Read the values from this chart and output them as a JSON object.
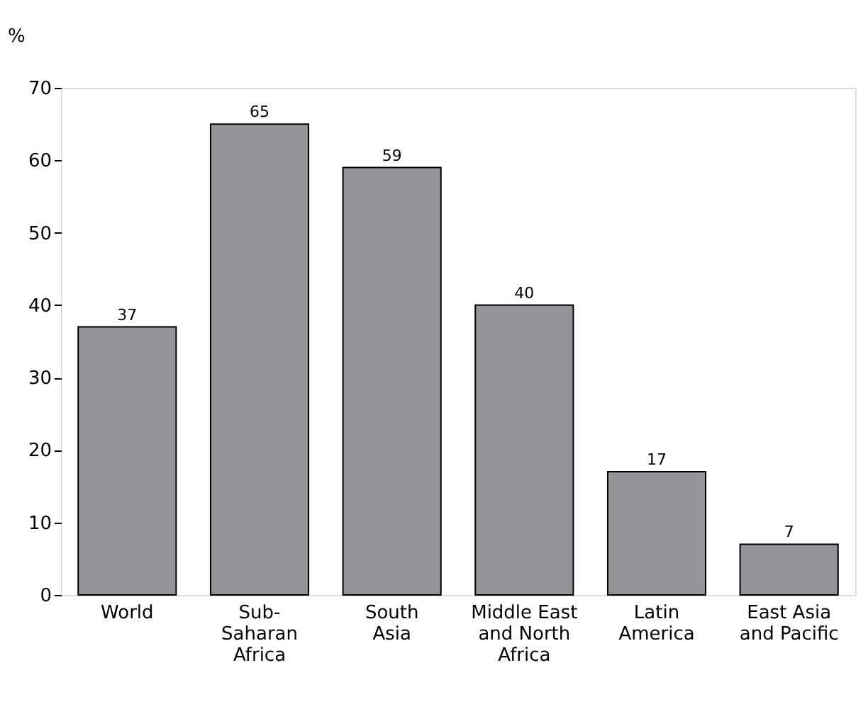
{
  "chart_data": {
    "type": "bar",
    "ylabel": "%",
    "categories": [
      "World",
      "Sub-\nSaharan\nAfrica",
      "South\nAsia",
      "Middle East\nand North\nAfrica",
      "Latin\nAmerica",
      "East Asia\nand Pacific"
    ],
    "values": [
      37,
      65,
      59,
      40,
      17,
      7
    ],
    "color": "#939598",
    "ylim": [
      0,
      70
    ],
    "yticks": [
      0,
      10,
      20,
      30,
      40,
      50,
      60,
      70
    ],
    "grid": false,
    "data_labels": true
  }
}
